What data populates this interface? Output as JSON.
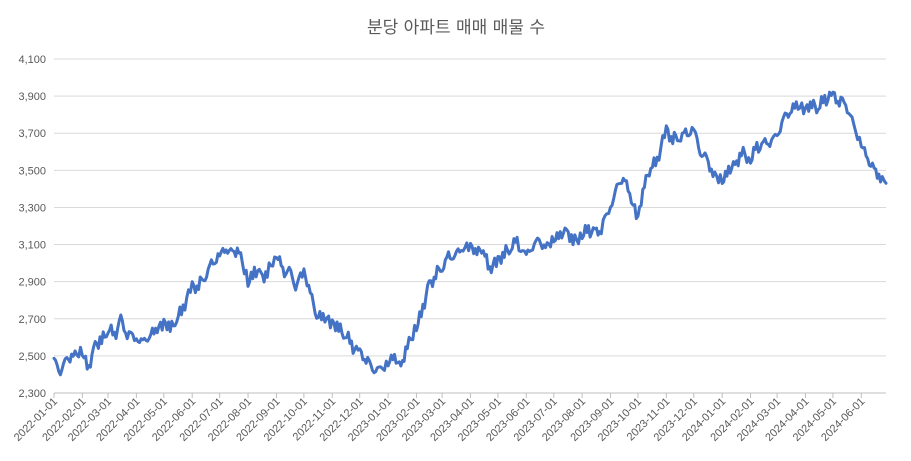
{
  "chart_data": {
    "type": "line",
    "title": "분당 아파트 매매 매물 수",
    "xlabel": "",
    "ylabel": "",
    "ylim": [
      2300,
      4100
    ],
    "yticks": [
      2300,
      2500,
      2700,
      2900,
      3100,
      3300,
      3500,
      3700,
      3900,
      4100
    ],
    "ytick_labels": [
      "2,300",
      "2,500",
      "2,700",
      "2,900",
      "3,100",
      "3,300",
      "3,500",
      "3,700",
      "3,900",
      "4,100"
    ],
    "xlim": [
      "2022-01-01",
      "2024-06-28"
    ],
    "xtick_labels": [
      "2022-01-01",
      "2022-02-01",
      "2022-03-01",
      "2022-04-01",
      "2022-05-01",
      "2022-06-01",
      "2022-07-01",
      "2022-08-01",
      "2022-09-01",
      "2022-10-01",
      "2022-11-01",
      "2022-12-01",
      "2023-01-01",
      "2023-02-01",
      "2023-03-01",
      "2023-04-01",
      "2023-05-01",
      "2023-06-01",
      "2023-07-01",
      "2023-08-01",
      "2023-09-01",
      "2023-10-01",
      "2023-11-01",
      "2023-12-01",
      "2024-01-01",
      "2024-02-01",
      "2024-03-01",
      "2024-04-01",
      "2024-05-01",
      "2024-06-01"
    ],
    "grid": true,
    "legend": "none",
    "series": [
      {
        "color": "#4472c4",
        "points": [
          [
            "2022-01-01",
            2470
          ],
          [
            "2022-01-08",
            2420
          ],
          [
            "2022-01-15",
            2480
          ],
          [
            "2022-01-22",
            2500
          ],
          [
            "2022-02-01",
            2520
          ],
          [
            "2022-02-08",
            2430
          ],
          [
            "2022-02-15",
            2560
          ],
          [
            "2022-02-22",
            2580
          ],
          [
            "2022-03-01",
            2650
          ],
          [
            "2022-03-08",
            2610
          ],
          [
            "2022-03-15",
            2690
          ],
          [
            "2022-03-22",
            2620
          ],
          [
            "2022-04-01",
            2600
          ],
          [
            "2022-04-08",
            2570
          ],
          [
            "2022-04-15",
            2610
          ],
          [
            "2022-04-22",
            2640
          ],
          [
            "2022-05-01",
            2680
          ],
          [
            "2022-05-08",
            2650
          ],
          [
            "2022-05-15",
            2700
          ],
          [
            "2022-05-22",
            2760
          ],
          [
            "2022-06-01",
            2870
          ],
          [
            "2022-06-08",
            2880
          ],
          [
            "2022-06-15",
            2930
          ],
          [
            "2022-06-22",
            2990
          ],
          [
            "2022-07-01",
            3040
          ],
          [
            "2022-07-08",
            3080
          ],
          [
            "2022-07-15",
            3050
          ],
          [
            "2022-07-22",
            3070
          ],
          [
            "2022-08-01",
            2890
          ],
          [
            "2022-08-08",
            2960
          ],
          [
            "2022-08-15",
            2930
          ],
          [
            "2022-08-22",
            2940
          ],
          [
            "2022-09-01",
            3060
          ],
          [
            "2022-09-08",
            2950
          ],
          [
            "2022-09-15",
            2960
          ],
          [
            "2022-09-22",
            2880
          ],
          [
            "2022-10-01",
            2960
          ],
          [
            "2022-10-08",
            2840
          ],
          [
            "2022-10-15",
            2720
          ],
          [
            "2022-10-22",
            2710
          ],
          [
            "2022-11-01",
            2680
          ],
          [
            "2022-11-08",
            2650
          ],
          [
            "2022-11-15",
            2620
          ],
          [
            "2022-11-22",
            2560
          ],
          [
            "2022-12-01",
            2510
          ],
          [
            "2022-12-08",
            2490
          ],
          [
            "2022-12-15",
            2430
          ],
          [
            "2022-12-22",
            2420
          ],
          [
            "2023-01-01",
            2460
          ],
          [
            "2023-01-08",
            2500
          ],
          [
            "2023-01-15",
            2430
          ],
          [
            "2023-01-22",
            2560
          ],
          [
            "2023-02-01",
            2650
          ],
          [
            "2023-02-08",
            2760
          ],
          [
            "2023-02-15",
            2880
          ],
          [
            "2023-02-22",
            2940
          ],
          [
            "2023-03-01",
            2980
          ],
          [
            "2023-03-08",
            3030
          ],
          [
            "2023-03-15",
            3040
          ],
          [
            "2023-03-22",
            3080
          ],
          [
            "2023-04-01",
            3090
          ],
          [
            "2023-04-08",
            3060
          ],
          [
            "2023-04-15",
            3080
          ],
          [
            "2023-04-22",
            2960
          ],
          [
            "2023-05-01",
            3020
          ],
          [
            "2023-05-08",
            3050
          ],
          [
            "2023-05-15",
            3090
          ],
          [
            "2023-05-22",
            3110
          ],
          [
            "2023-06-01",
            3030
          ],
          [
            "2023-06-08",
            3100
          ],
          [
            "2023-06-15",
            3120
          ],
          [
            "2023-06-22",
            3080
          ],
          [
            "2023-07-01",
            3130
          ],
          [
            "2023-07-08",
            3150
          ],
          [
            "2023-07-15",
            3170
          ],
          [
            "2023-07-22",
            3120
          ],
          [
            "2023-08-01",
            3150
          ],
          [
            "2023-08-08",
            3180
          ],
          [
            "2023-08-15",
            3160
          ],
          [
            "2023-08-22",
            3190
          ],
          [
            "2023-09-01",
            3310
          ],
          [
            "2023-09-08",
            3400
          ],
          [
            "2023-09-15",
            3470
          ],
          [
            "2023-09-22",
            3370
          ],
          [
            "2023-10-01",
            3240
          ],
          [
            "2023-10-08",
            3430
          ],
          [
            "2023-10-15",
            3520
          ],
          [
            "2023-10-22",
            3550
          ],
          [
            "2023-11-01",
            3720
          ],
          [
            "2023-11-08",
            3670
          ],
          [
            "2023-11-15",
            3680
          ],
          [
            "2023-11-22",
            3690
          ],
          [
            "2023-12-01",
            3720
          ],
          [
            "2023-12-08",
            3600
          ],
          [
            "2023-12-15",
            3560
          ],
          [
            "2023-12-22",
            3480
          ],
          [
            "2024-01-01",
            3440
          ],
          [
            "2024-01-08",
            3500
          ],
          [
            "2024-01-15",
            3520
          ],
          [
            "2024-01-22",
            3600
          ],
          [
            "2024-02-01",
            3560
          ],
          [
            "2024-02-08",
            3620
          ],
          [
            "2024-02-15",
            3640
          ],
          [
            "2024-02-22",
            3660
          ],
          [
            "2024-03-01",
            3680
          ],
          [
            "2024-03-08",
            3780
          ],
          [
            "2024-03-15",
            3820
          ],
          [
            "2024-03-22",
            3850
          ],
          [
            "2024-04-01",
            3830
          ],
          [
            "2024-04-08",
            3860
          ],
          [
            "2024-04-15",
            3840
          ],
          [
            "2024-04-22",
            3880
          ],
          [
            "2024-05-01",
            3900
          ],
          [
            "2024-05-08",
            3880
          ],
          [
            "2024-05-15",
            3860
          ],
          [
            "2024-05-22",
            3760
          ],
          [
            "2024-06-01",
            3640
          ],
          [
            "2024-06-08",
            3560
          ],
          [
            "2024-06-15",
            3500
          ],
          [
            "2024-06-22",
            3460
          ],
          [
            "2024-06-28",
            3430
          ]
        ]
      }
    ]
  }
}
